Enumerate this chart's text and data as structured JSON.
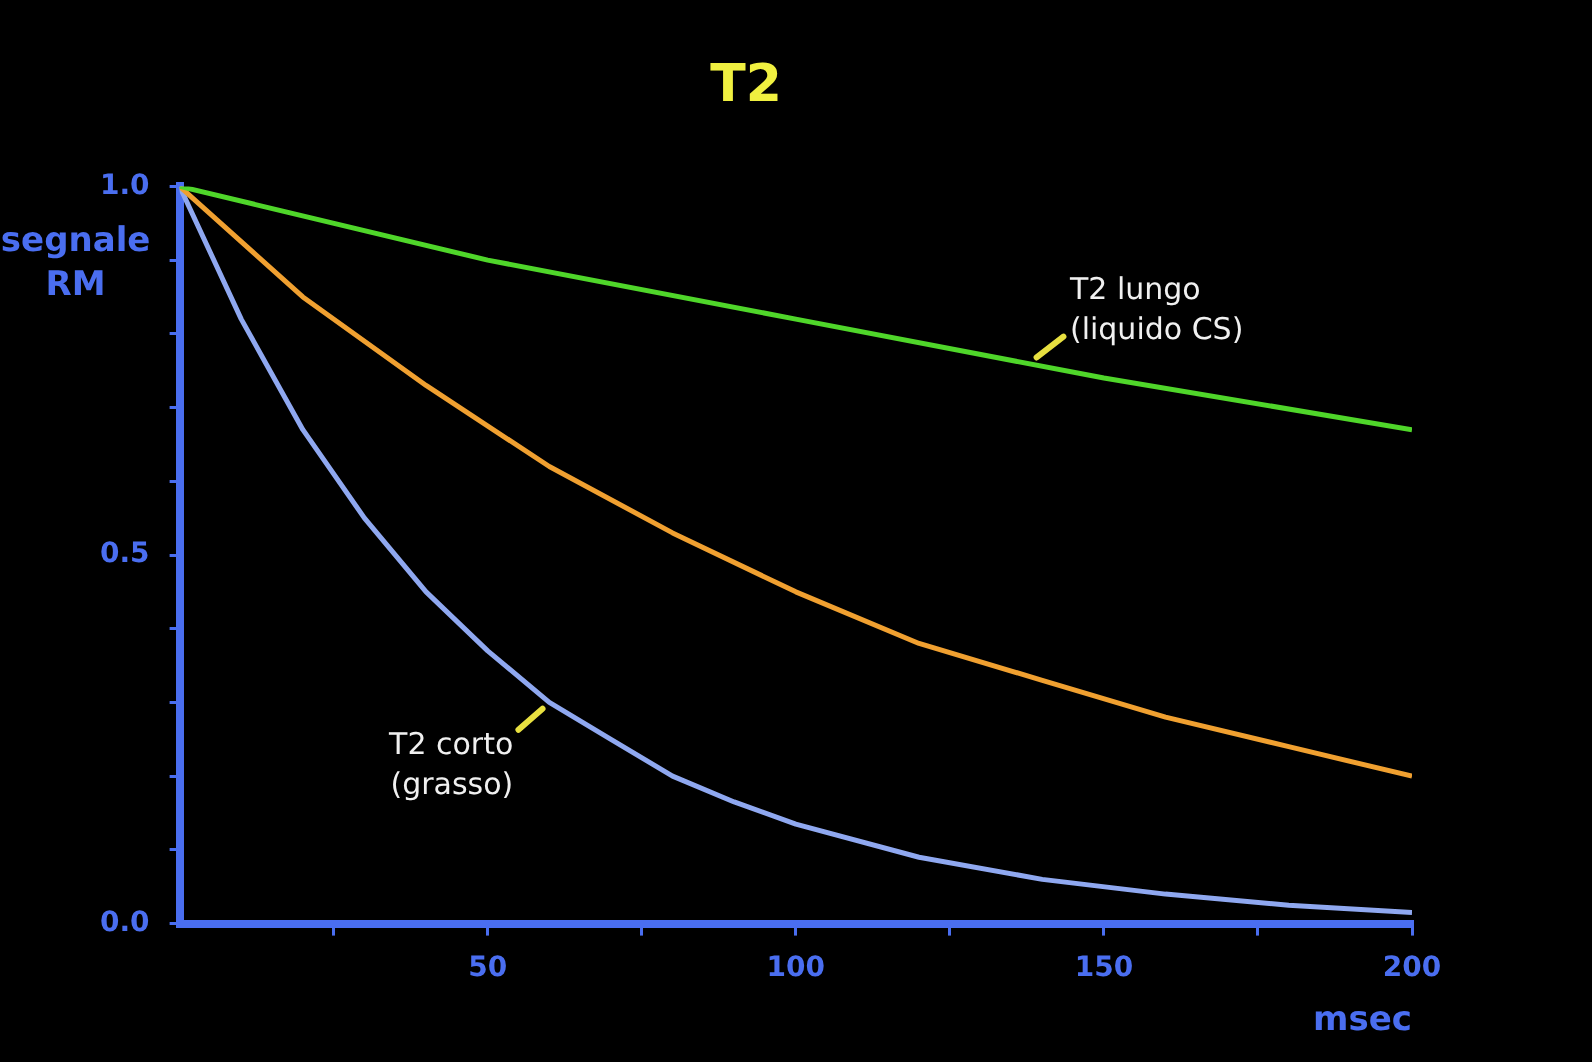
{
  "chart_data": {
    "type": "line",
    "title": "T2",
    "xlabel": "msec",
    "ylabel": "segnale RM",
    "xlim": [
      0,
      200
    ],
    "xticks": [
      {
        "value": 25,
        "label": null
      },
      50,
      {
        "value": 75,
        "label": null
      },
      100,
      {
        "value": 125,
        "label": null
      },
      150,
      {
        "value": 175,
        "label": null
      },
      200
    ],
    "ylim": [
      0,
      1
    ],
    "yticks": [
      {
        "value": 0,
        "label": "0.0"
      },
      {
        "value": 0.1,
        "label": null
      },
      {
        "value": 0.2,
        "label": null
      },
      {
        "value": 0.3,
        "label": null
      },
      {
        "value": 0.4,
        "label": null
      },
      {
        "value": 0.5,
        "label": "0.5"
      },
      {
        "value": 0.6,
        "label": null
      },
      {
        "value": 0.7,
        "label": null
      },
      {
        "value": 0.8,
        "label": null
      },
      {
        "value": 0.9,
        "label": null
      },
      {
        "value": 1,
        "label": "1.0"
      }
    ],
    "grid": false,
    "legend": false,
    "marker": "none",
    "line_style": "solid",
    "series": [
      {
        "color": "#4fd62a",
        "x": [
          0,
          50,
          100,
          150,
          200
        ],
        "values": [
          1,
          0.9,
          0.82,
          0.74,
          0.67
        ]
      },
      {
        "color": "#f0a030",
        "x": [
          0,
          20,
          40,
          60,
          80,
          100,
          120,
          140,
          160,
          180,
          200
        ],
        "values": [
          1,
          0.85,
          0.73,
          0.62,
          0.53,
          0.45,
          0.38,
          0.33,
          0.28,
          0.24,
          0.2
        ]
      },
      {
        "color": "#8fa8f0",
        "x": [
          0,
          10,
          20,
          30,
          40,
          50,
          60,
          70,
          80,
          90,
          100,
          120,
          140,
          160,
          180,
          200
        ],
        "values": [
          1,
          0.82,
          0.67,
          0.55,
          0.45,
          0.37,
          0.3,
          0.25,
          0.2,
          0.165,
          0.135,
          0.09,
          0.06,
          0.04,
          0.025,
          0.015
        ]
      }
    ],
    "annotations": [
      {
        "text": "T2 lungo (liquido CS)",
        "x": 138,
        "y": 0.76
      },
      {
        "text": "T2 corto (grasso)",
        "x": 60,
        "y": 0.3
      }
    ]
  }
}
